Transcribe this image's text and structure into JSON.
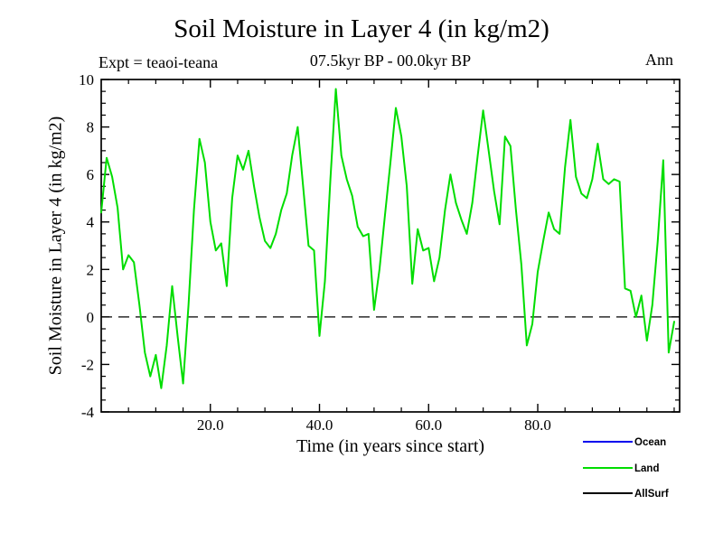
{
  "chart_data": {
    "type": "line",
    "title": "Soil Moisture in Layer 4 (in kg/m2)",
    "header": {
      "left": "Expt = teaoi-teana",
      "center": "07.5kyr BP - 00.0kyr BP",
      "right": "Ann"
    },
    "xlabel": "Time (in years since start)",
    "ylabel": "Soil Moisture in Layer 4 (in kg/m2)",
    "xlim": [
      0,
      106
    ],
    "ylim": [
      -4,
      10
    ],
    "x_ticks": [
      20,
      40,
      60,
      80
    ],
    "x_tick_labels": [
      "20.0",
      "40.0",
      "60.0",
      "80.0"
    ],
    "x_minor_tick_step": 5,
    "y_ticks": [
      -4,
      -2,
      0,
      2,
      4,
      6,
      8,
      10
    ],
    "y_tick_labels": [
      "-4",
      "-2",
      "0",
      "2",
      "4",
      "6",
      "8",
      "10"
    ],
    "y_minor_tick_step": 0.5,
    "grid": false,
    "zero_line": {
      "y": 0,
      "style": "dashed",
      "color": "#000000"
    },
    "axis_color": "#000000",
    "x_start_year": 0,
    "x_step_years": 1,
    "series": [
      {
        "name": "Ocean",
        "color": "#0000ee",
        "values": []
      },
      {
        "name": "Land",
        "color": "#00dd00",
        "values": [
          4.4,
          6.7,
          5.9,
          4.6,
          2.0,
          2.6,
          2.3,
          0.5,
          -1.5,
          -2.5,
          -1.6,
          -3.0,
          -1.2,
          1.3,
          -0.8,
          -2.8,
          0.5,
          4.5,
          7.5,
          6.5,
          4.0,
          2.8,
          3.1,
          1.3,
          5.0,
          6.8,
          6.2,
          7.0,
          5.5,
          4.2,
          3.2,
          2.9,
          3.5,
          4.5,
          5.2,
          6.8,
          8.0,
          5.5,
          3.0,
          2.8,
          -0.8,
          1.5,
          5.8,
          9.6,
          6.8,
          5.8,
          5.1,
          3.8,
          3.4,
          3.5,
          0.3,
          2.0,
          4.3,
          6.5,
          8.8,
          7.6,
          5.5,
          1.4,
          3.7,
          2.8,
          2.9,
          1.5,
          2.5,
          4.5,
          6.0,
          4.8,
          4.1,
          3.5,
          4.8,
          6.8,
          8.7,
          7.0,
          5.3,
          3.9,
          7.6,
          7.2,
          4.5,
          2.2,
          -1.2,
          -0.3,
          1.9,
          3.2,
          4.4,
          3.7,
          3.5,
          6.3,
          8.3,
          5.9,
          5.2,
          5.0,
          5.8,
          7.3,
          5.8,
          5.6,
          5.8,
          5.7,
          1.2,
          1.1,
          0.0,
          0.9,
          -1.0,
          0.5,
          3.2,
          6.6,
          -1.5,
          -0.2
        ]
      },
      {
        "name": "AllSurf",
        "color": "#000000",
        "values": []
      }
    ],
    "legend": {
      "position": "bottom-right",
      "entries": [
        "Ocean",
        "Land",
        "AllSurf"
      ]
    }
  }
}
